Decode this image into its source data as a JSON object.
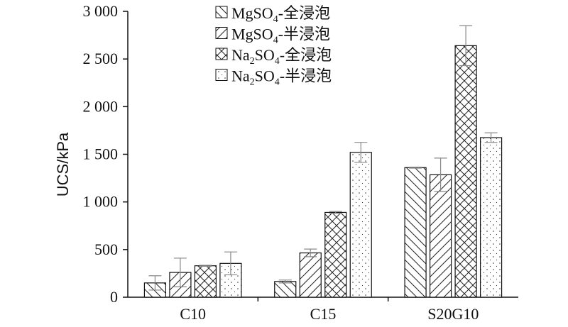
{
  "chart_data": {
    "type": "bar",
    "categories": [
      "C10",
      "C15",
      "S20G10"
    ],
    "ylabel": "UCS/kPa",
    "ylim": [
      0,
      3000
    ],
    "yticks": [
      0,
      500,
      1000,
      1500,
      2000,
      2500,
      3000
    ],
    "ytick_labels": [
      "0",
      "500",
      "1 000",
      "1 500",
      "2 000",
      "2 500",
      "3 000"
    ],
    "legend_position": "top-center",
    "series": [
      {
        "name": "MgSO4-全浸泡",
        "legend": {
          "chem": "MgSO",
          "sub": "4",
          "suffix": "-全浸泡"
        },
        "pattern": "backslash-hatch",
        "values": [
          150,
          165,
          1360
        ],
        "errors": [
          75,
          15,
          5
        ]
      },
      {
        "name": "MgSO4-半浸泡",
        "legend": {
          "chem": "MgSO",
          "sub": "4",
          "suffix": "-半浸泡"
        },
        "pattern": "slash-hatch",
        "values": [
          260,
          465,
          1285
        ],
        "errors": [
          150,
          40,
          175
        ]
      },
      {
        "name": "Na2SO4-全浸泡",
        "legend": {
          "chem": "Na",
          "sub": "2",
          "chem2": "SO",
          "sub2": "4",
          "suffix": "-全浸泡"
        },
        "pattern": "cross-hatch",
        "values": [
          330,
          890,
          2640
        ],
        "errors": [
          5,
          10,
          210
        ]
      },
      {
        "name": "Na2SO4-半浸泡",
        "legend": {
          "chem": "Na",
          "sub": "2",
          "chem2": "SO",
          "sub2": "4",
          "suffix": "-半浸泡"
        },
        "pattern": "dots",
        "values": [
          355,
          1520,
          1675
        ],
        "errors": [
          120,
          105,
          50
        ]
      }
    ]
  }
}
